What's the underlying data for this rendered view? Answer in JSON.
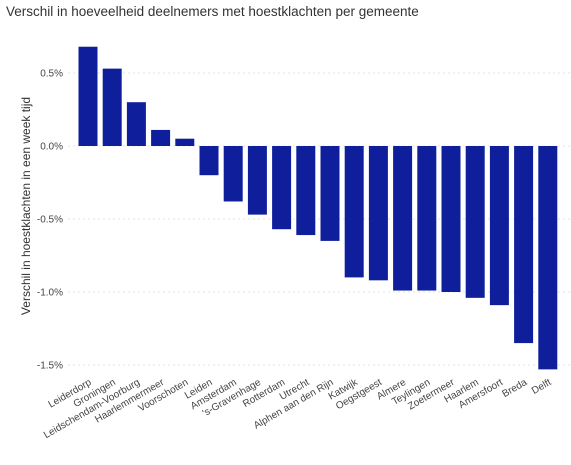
{
  "chart_data": {
    "type": "bar",
    "title": "Verschil in hoeveelheid deelnemers met hoestklachten per gemeente",
    "ylabel": "Verschil in hoestklachten in een week tijd",
    "xlabel": "",
    "ylim": [
      -1.55,
      0.75
    ],
    "yticks": [
      0.5,
      0.0,
      -0.5,
      -1.0,
      -1.5
    ],
    "ytick_labels": [
      "0.5%",
      "0.0%",
      "-0.5%",
      "-1.0%",
      "-1.5%"
    ],
    "grid": "horizontal",
    "bar_color": "#0f1f9c",
    "categories": [
      "Leiderdorp",
      "Groningen",
      "Leidschendam-Voorburg",
      "Haarlemmermeer",
      "Voorschoten",
      "Leiden",
      "Amsterdam",
      "'s-Gravenhage",
      "Rotterdam",
      "Utrecht",
      "Alphen aan den Rijn",
      "Katwijk",
      "Oegstgeest",
      "Almere",
      "Teylingen",
      "Zoetermeer",
      "Haarlem",
      "Amersfoort",
      "Breda",
      "Delft"
    ],
    "values": [
      0.68,
      0.53,
      0.3,
      0.11,
      0.05,
      -0.2,
      -0.38,
      -0.47,
      -0.57,
      -0.61,
      -0.65,
      -0.9,
      -0.92,
      -0.99,
      -0.99,
      -1.0,
      -1.04,
      -1.09,
      -1.35,
      -1.53
    ]
  }
}
